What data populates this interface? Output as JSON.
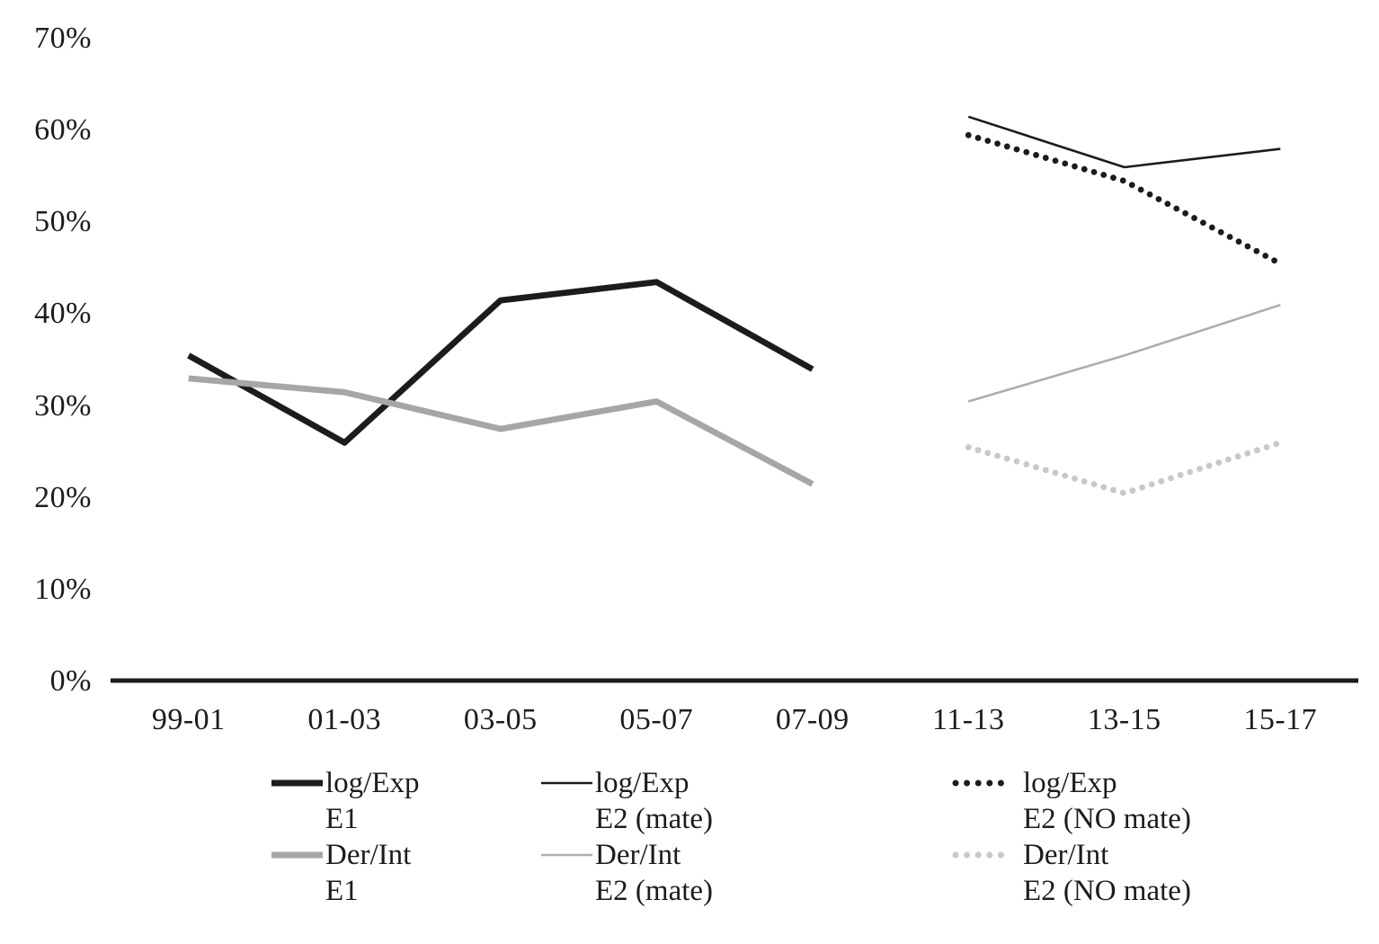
{
  "chart_data": {
    "type": "line",
    "title": "",
    "xlabel": "",
    "ylabel": "",
    "grid": false,
    "legend_position": "bottom",
    "categories": [
      "99-01",
      "01-03",
      "03-05",
      "05-07",
      "07-09",
      "11-13",
      "13-15",
      "15-17"
    ],
    "y_axis": {
      "min": 0,
      "max": 70,
      "tick_step": 10,
      "tick_labels": [
        "0%",
        "10%",
        "20%",
        "30%",
        "40%",
        "50%",
        "60%",
        "70%"
      ]
    },
    "axis_color": "#1c1c1c",
    "series": [
      {
        "name": "log/Exp E1",
        "legend_line1": "log/Exp",
        "legend_line2": "E1",
        "style": "thick-solid",
        "color": "#1c1c1c",
        "start_category": "99-01",
        "values": [
          35.5,
          26,
          41.5,
          43.5,
          34
        ]
      },
      {
        "name": "log/Exp E2 (mate)",
        "legend_line1": "log/Exp",
        "legend_line2": "E2 (mate)",
        "style": "thin-solid",
        "color": "#1c1c1c",
        "start_category": "11-13",
        "values": [
          61.5,
          56,
          58
        ]
      },
      {
        "name": "log/Exp E2 (NO mate)",
        "legend_line1": "log/Exp",
        "legend_line2": "E2 (NO mate)",
        "style": "dotted",
        "color": "#1c1c1c",
        "start_category": "11-13",
        "values": [
          59.5,
          54.5,
          45.5
        ]
      },
      {
        "name": "Der/Int E1",
        "legend_line1": "Der/Int",
        "legend_line2": "E1",
        "style": "thick-solid",
        "color": "#a6a6a6",
        "start_category": "99-01",
        "values": [
          33,
          31.5,
          27.5,
          30.5,
          21.5
        ]
      },
      {
        "name": "Der/Int E2 (mate)",
        "legend_line1": "Der/Int",
        "legend_line2": "E2 (mate)",
        "style": "thin-solid",
        "color": "#aeaeae",
        "start_category": "11-13",
        "values": [
          30.5,
          35.5,
          41
        ]
      },
      {
        "name": "Der/Int E2 (NO mate)",
        "legend_line1": "Der/Int",
        "legend_line2": "E2 (NO mate)",
        "style": "dotted",
        "color": "#c8c8c8",
        "start_category": "11-13",
        "values": [
          25.5,
          20.5,
          26
        ]
      }
    ]
  }
}
